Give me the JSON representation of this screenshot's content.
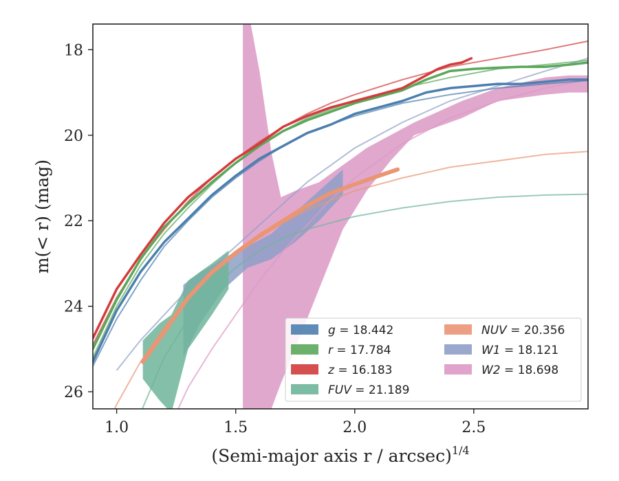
{
  "chart_data": {
    "type": "line",
    "xlabel": "(Semi-major axis r / arcsec)",
    "xlabel_superscript": "1/4",
    "ylabel": "m(< r) (mag)",
    "xlim": [
      0.9,
      2.98
    ],
    "ylim": [
      26.4,
      17.4
    ],
    "y_inverted": true,
    "grid": false,
    "legend_position": "lower-right",
    "x_ticks": [
      1.0,
      1.5,
      2.0,
      2.5
    ],
    "y_ticks": [
      18,
      20,
      22,
      24,
      26
    ],
    "x_tick_labels": [
      "1.0",
      "1.5",
      "2.0",
      "2.5"
    ],
    "y_tick_labels": [
      "18",
      "20",
      "22",
      "24",
      "26"
    ],
    "series": [
      {
        "name": "g = 18.442",
        "band": "g",
        "total": "18.442",
        "color": "#4c7fae",
        "profile": [
          [
            0.9,
            25.3
          ],
          [
            1.0,
            24.1
          ],
          [
            1.1,
            23.2
          ],
          [
            1.2,
            22.5
          ],
          [
            1.3,
            21.95
          ],
          [
            1.4,
            21.4
          ],
          [
            1.5,
            20.95
          ],
          [
            1.6,
            20.55
          ],
          [
            1.7,
            20.25
          ],
          [
            1.8,
            19.95
          ],
          [
            1.9,
            19.75
          ],
          [
            2.0,
            19.5
          ],
          [
            2.1,
            19.35
          ],
          [
            2.2,
            19.2
          ],
          [
            2.3,
            19.0
          ],
          [
            2.4,
            18.9
          ],
          [
            2.5,
            18.85
          ],
          [
            2.6,
            18.8
          ],
          [
            2.7,
            18.8
          ],
          [
            2.8,
            18.75
          ],
          [
            2.9,
            18.7
          ],
          [
            2.98,
            18.7
          ]
        ],
        "fit": [
          [
            0.9,
            25.4
          ],
          [
            1.0,
            24.3
          ],
          [
            1.1,
            23.4
          ],
          [
            1.2,
            22.6
          ],
          [
            1.3,
            22.0
          ],
          [
            1.4,
            21.45
          ],
          [
            1.5,
            21.0
          ],
          [
            1.6,
            20.6
          ],
          [
            1.7,
            20.25
          ],
          [
            1.8,
            19.95
          ],
          [
            1.9,
            19.75
          ],
          [
            2.0,
            19.55
          ],
          [
            2.2,
            19.25
          ],
          [
            2.4,
            19.05
          ],
          [
            2.6,
            18.9
          ],
          [
            2.8,
            18.8
          ],
          [
            2.98,
            18.72
          ]
        ]
      },
      {
        "name": "r = 17.784",
        "band": "r",
        "total": "17.784",
        "color": "#5ba75b",
        "profile": [
          [
            0.9,
            25.0
          ],
          [
            1.0,
            23.85
          ],
          [
            1.1,
            22.9
          ],
          [
            1.2,
            22.15
          ],
          [
            1.3,
            21.6
          ],
          [
            1.4,
            21.1
          ],
          [
            1.5,
            20.65
          ],
          [
            1.6,
            20.25
          ],
          [
            1.7,
            19.9
          ],
          [
            1.8,
            19.65
          ],
          [
            1.9,
            19.45
          ],
          [
            2.0,
            19.25
          ],
          [
            2.1,
            19.1
          ],
          [
            2.2,
            18.95
          ],
          [
            2.3,
            18.7
          ],
          [
            2.4,
            18.5
          ],
          [
            2.5,
            18.45
          ],
          [
            2.6,
            18.42
          ],
          [
            2.7,
            18.4
          ],
          [
            2.8,
            18.4
          ],
          [
            2.9,
            18.35
          ],
          [
            2.98,
            18.3
          ]
        ],
        "fit": [
          [
            0.9,
            25.2
          ],
          [
            1.0,
            24.0
          ],
          [
            1.1,
            23.05
          ],
          [
            1.2,
            22.3
          ],
          [
            1.3,
            21.7
          ],
          [
            1.4,
            21.15
          ],
          [
            1.5,
            20.65
          ],
          [
            1.6,
            20.25
          ],
          [
            1.7,
            19.9
          ],
          [
            1.8,
            19.6
          ],
          [
            1.9,
            19.4
          ],
          [
            2.0,
            19.2
          ],
          [
            2.2,
            18.9
          ],
          [
            2.4,
            18.65
          ],
          [
            2.6,
            18.45
          ],
          [
            2.8,
            18.35
          ],
          [
            2.98,
            18.25
          ]
        ]
      },
      {
        "name": "z = 16.183",
        "band": "z",
        "total": "16.183",
        "color": "#d23c3c",
        "profile": [
          [
            0.9,
            24.75
          ],
          [
            1.0,
            23.6
          ],
          [
            1.1,
            22.8
          ],
          [
            1.2,
            22.05
          ],
          [
            1.3,
            21.45
          ],
          [
            1.4,
            21.0
          ],
          [
            1.5,
            20.55
          ],
          [
            1.6,
            20.2
          ],
          [
            1.7,
            19.8
          ],
          [
            1.8,
            19.55
          ],
          [
            1.9,
            19.35
          ],
          [
            2.0,
            19.2
          ],
          [
            2.1,
            19.05
          ],
          [
            2.2,
            18.9
          ],
          [
            2.3,
            18.6
          ],
          [
            2.35,
            18.45
          ],
          [
            2.4,
            18.35
          ],
          [
            2.45,
            18.3
          ],
          [
            2.49,
            18.2
          ]
        ],
        "fit": [
          [
            0.9,
            24.9
          ],
          [
            1.0,
            23.8
          ],
          [
            1.1,
            22.9
          ],
          [
            1.2,
            22.2
          ],
          [
            1.3,
            21.55
          ],
          [
            1.4,
            21.0
          ],
          [
            1.5,
            20.55
          ],
          [
            1.6,
            20.15
          ],
          [
            1.7,
            19.8
          ],
          [
            1.8,
            19.5
          ],
          [
            1.9,
            19.25
          ],
          [
            2.0,
            19.05
          ],
          [
            2.2,
            18.7
          ],
          [
            2.4,
            18.4
          ],
          [
            2.6,
            18.2
          ],
          [
            2.8,
            18.0
          ],
          [
            2.98,
            17.8
          ]
        ]
      },
      {
        "name": "FUV = 21.189",
        "band": "FUV",
        "total": "21.189",
        "color": "#6fb59a",
        "band_range": [
          [
            1.11,
            24.8,
            25.7
          ],
          [
            1.18,
            24.4,
            26.2
          ],
          [
            1.23,
            24.2,
            26.5
          ],
          [
            1.3,
            23.4,
            25.0
          ],
          [
            1.4,
            23.0,
            24.2
          ],
          [
            1.47,
            22.7,
            23.6
          ]
        ],
        "fit": [
          [
            1.0,
            28.5
          ],
          [
            1.05,
            27.5
          ],
          [
            1.1,
            26.5
          ],
          [
            1.2,
            25.2
          ],
          [
            1.3,
            24.3
          ],
          [
            1.4,
            23.6
          ],
          [
            1.5,
            23.1
          ],
          [
            1.6,
            22.7
          ],
          [
            1.7,
            22.4
          ],
          [
            1.8,
            22.2
          ],
          [
            2.0,
            21.9
          ],
          [
            2.2,
            21.7
          ],
          [
            2.4,
            21.55
          ],
          [
            2.6,
            21.45
          ],
          [
            2.8,
            21.4
          ],
          [
            2.98,
            21.38
          ]
        ]
      },
      {
        "name": "NUV = 20.356",
        "band": "NUV",
        "total": "20.356",
        "color": "#ea9574",
        "profile": [
          [
            1.11,
            25.3
          ],
          [
            1.2,
            24.6
          ],
          [
            1.3,
            23.8
          ],
          [
            1.4,
            23.2
          ],
          [
            1.5,
            22.75
          ],
          [
            1.6,
            22.35
          ],
          [
            1.7,
            22.0
          ],
          [
            1.8,
            21.65
          ],
          [
            1.9,
            21.35
          ],
          [
            2.0,
            21.15
          ],
          [
            2.1,
            20.95
          ],
          [
            2.18,
            20.8
          ]
        ],
        "fit": [
          [
            0.9,
            27.5
          ],
          [
            1.0,
            26.3
          ],
          [
            1.1,
            25.3
          ],
          [
            1.2,
            24.5
          ],
          [
            1.3,
            23.8
          ],
          [
            1.4,
            23.25
          ],
          [
            1.5,
            22.8
          ],
          [
            1.6,
            22.4
          ],
          [
            1.7,
            22.05
          ],
          [
            1.8,
            21.75
          ],
          [
            2.0,
            21.3
          ],
          [
            2.2,
            21.0
          ],
          [
            2.4,
            20.75
          ],
          [
            2.6,
            20.6
          ],
          [
            2.8,
            20.45
          ],
          [
            2.98,
            20.38
          ]
        ]
      },
      {
        "name": "W1 = 18.121",
        "band": "W1",
        "total": "18.121",
        "color": "#8e9fc7",
        "band_range": [
          [
            1.28,
            23.5,
            25.2
          ],
          [
            1.35,
            23.2,
            24.4
          ],
          [
            1.45,
            22.9,
            23.6
          ],
          [
            1.55,
            22.6,
            23.1
          ],
          [
            1.65,
            22.3,
            22.9
          ],
          [
            1.75,
            21.8,
            22.5
          ],
          [
            1.85,
            21.3,
            22.0
          ],
          [
            1.95,
            20.8,
            21.4
          ]
        ],
        "fit": [
          [
            1.0,
            25.5
          ],
          [
            1.1,
            24.8
          ],
          [
            1.2,
            24.2
          ],
          [
            1.3,
            23.6
          ],
          [
            1.4,
            23.1
          ],
          [
            1.5,
            22.6
          ],
          [
            1.6,
            22.1
          ],
          [
            1.7,
            21.6
          ],
          [
            1.8,
            21.1
          ],
          [
            1.9,
            20.7
          ],
          [
            2.0,
            20.3
          ],
          [
            2.2,
            19.7
          ],
          [
            2.4,
            19.2
          ],
          [
            2.6,
            18.85
          ],
          [
            2.8,
            18.5
          ],
          [
            2.98,
            18.2
          ]
        ]
      },
      {
        "name": "W2 = 18.698",
        "band": "W2",
        "total": "18.698",
        "color": "#dc99c6",
        "band_range": [
          [
            1.53,
            17.3,
            26.4
          ],
          [
            1.56,
            17.3,
            26.4
          ],
          [
            1.6,
            18.5,
            26.4
          ],
          [
            1.65,
            20.4,
            26.4
          ],
          [
            1.69,
            21.45,
            25.8
          ],
          [
            1.75,
            21.3,
            25.0
          ],
          [
            1.85,
            21.1,
            23.6
          ],
          [
            1.95,
            20.7,
            22.2
          ],
          [
            2.05,
            20.3,
            21.3
          ],
          [
            2.15,
            20.0,
            20.6
          ],
          [
            2.25,
            19.7,
            20.0
          ],
          [
            2.35,
            19.45,
            19.8
          ],
          [
            2.45,
            19.2,
            19.6
          ],
          [
            2.6,
            18.9,
            19.2
          ],
          [
            2.8,
            18.65,
            19.05
          ],
          [
            2.9,
            18.6,
            19.0
          ],
          [
            2.98,
            18.6,
            19.0
          ]
        ],
        "fit": [
          [
            1.25,
            26.5
          ],
          [
            1.3,
            25.9
          ],
          [
            1.4,
            25.0
          ],
          [
            1.5,
            24.2
          ],
          [
            1.6,
            23.4
          ],
          [
            1.7,
            22.7
          ],
          [
            1.8,
            22.1
          ],
          [
            1.9,
            21.5
          ],
          [
            2.0,
            21.0
          ],
          [
            2.2,
            20.2
          ],
          [
            2.4,
            19.6
          ],
          [
            2.6,
            19.2
          ],
          [
            2.8,
            18.9
          ],
          [
            2.98,
            18.7
          ]
        ]
      }
    ]
  }
}
